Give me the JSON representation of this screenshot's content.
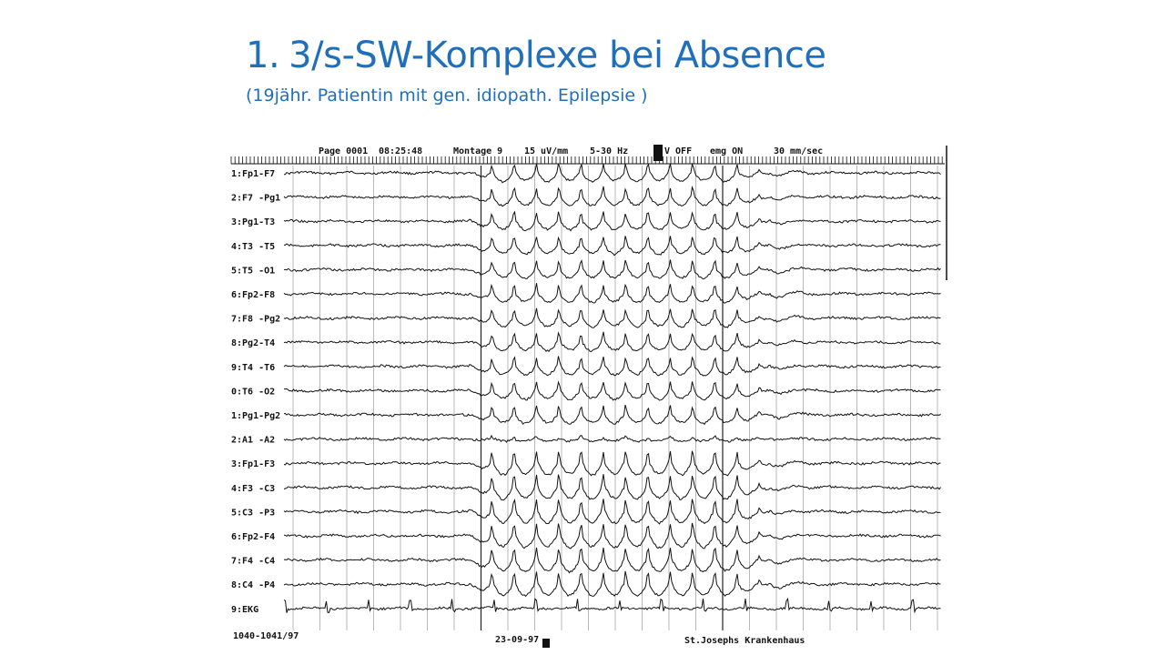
{
  "slide": {
    "title_number": "1.",
    "title_text": "3/s-SW-Komplexe bei Absence",
    "subtitle": "(19jähr. Patientin mit gen. idiopath. Epilepsie )"
  },
  "eeg": {
    "header": {
      "page": "Page 0001",
      "time": "08:25:48",
      "montage": "Montage  9",
      "sensitivity": "15 uV/mm",
      "filter": "5-30 Hz",
      "video": "V OFF",
      "emg": "emg ON",
      "paper_speed": "30  mm/sec"
    },
    "channels": [
      "1:Fp1-F7",
      "2:F7 -Pg1",
      "3:Pg1-T3",
      "4:T3 -T5",
      "5:T5 -O1",
      "6:Fp2-F8",
      "7:F8 -Pg2",
      "8:Pg2-T4",
      "9:T4 -T6",
      "0:T6 -O2",
      "1:Pg1-Pg2",
      "2:A1 -A2",
      "3:Fp1-F3",
      "4:F3 -C3",
      "5:C3 -P3",
      "6:Fp2-F4",
      "7:F4 -C4",
      "8:C4 -P4",
      "9:EKG"
    ],
    "footer": {
      "record_id": "1040-1041/97",
      "date": "23-09-97",
      "hospital": "St.Josephs Krankenhaus"
    },
    "spike_wave_rate_hz": 3,
    "discharge_onset_fraction": 0.28,
    "discharge_end_fraction": 0.74,
    "colors": {
      "title": "#1f6fbd",
      "trace": "#111111",
      "grid": "#9a9a9a"
    }
  }
}
